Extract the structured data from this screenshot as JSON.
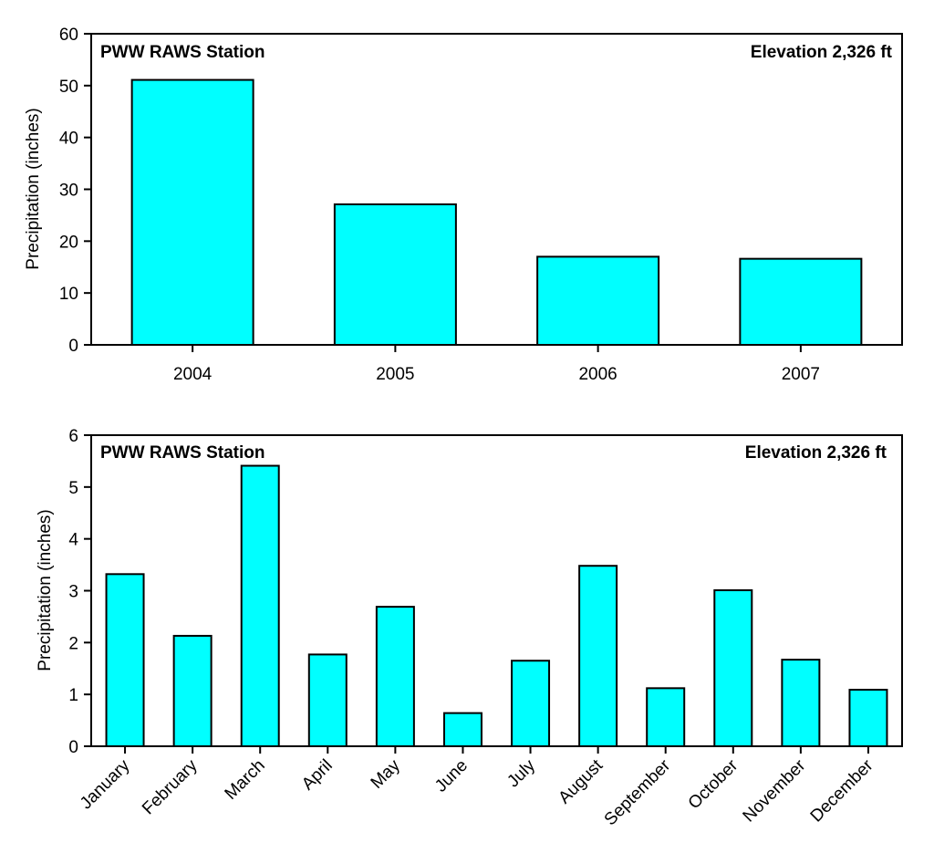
{
  "chart_data": [
    {
      "type": "bar",
      "station_label": "PWW RAWS Station",
      "elevation_label": "Elevation 2,326 ft",
      "xlabel": "",
      "ylabel": "Precipitation (inches)",
      "ylim": [
        0,
        60
      ],
      "yticks": [
        "0",
        "10",
        "20",
        "30",
        "40",
        "50",
        "60"
      ],
      "categories": [
        "2004",
        "2005",
        "2006",
        "2007"
      ],
      "values": [
        51.1,
        27.1,
        17.0,
        16.6
      ],
      "bar_color": "#00ffff",
      "grid": false,
      "legend": "none"
    },
    {
      "type": "bar",
      "station_label": "PWW RAWS Station",
      "elevation_label": "Elevation 2,326 ft",
      "xlabel": "",
      "ylabel": "Precipitation (inches)",
      "ylim": [
        0,
        6
      ],
      "yticks": [
        "0",
        "1",
        "2",
        "3",
        "4",
        "5",
        "6"
      ],
      "categories": [
        "January",
        "February",
        "March",
        "April",
        "May",
        "June",
        "July",
        "August",
        "September",
        "October",
        "November",
        "December"
      ],
      "values": [
        3.32,
        2.13,
        5.41,
        1.77,
        2.69,
        0.64,
        1.65,
        3.48,
        1.12,
        3.01,
        1.67,
        1.09
      ],
      "bar_color": "#00ffff",
      "grid": false,
      "legend": "none"
    }
  ]
}
